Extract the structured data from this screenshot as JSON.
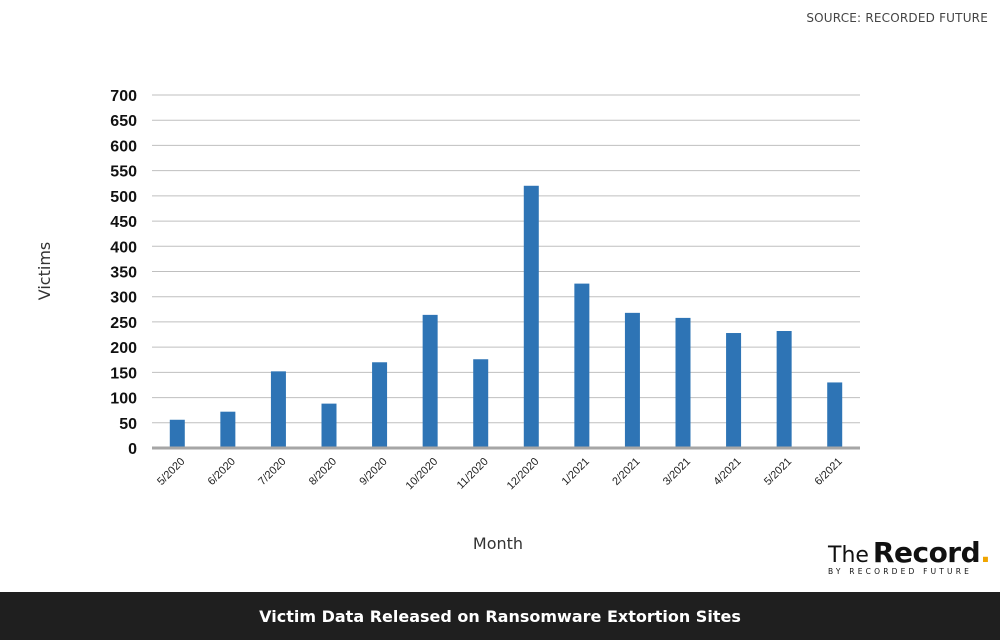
{
  "source": "SOURCE: RECORDED FUTURE",
  "logo": {
    "the": "The",
    "record": "Record",
    "dot": ".",
    "byline": "BY RECORDED FUTURE"
  },
  "footer_title": "Victim Data Released on Ransomware Extortion Sites",
  "colors": {
    "bar": "#2e74b5",
    "grid": "#bfbfbf",
    "axis": "#a6a6a6",
    "accent": "#f0a500",
    "footer_bg": "#1f1f1f"
  },
  "chart_data": {
    "type": "bar",
    "xlabel": "Month",
    "ylabel": "Victims",
    "categories": [
      "5/2020",
      "6/2020",
      "7/2020",
      "8/2020",
      "9/2020",
      "10/2020",
      "11/2020",
      "12/2020",
      "1/2021",
      "2/2021",
      "3/2021",
      "4/2021",
      "5/2021",
      "6/2021"
    ],
    "values": [
      56,
      72,
      152,
      88,
      170,
      264,
      176,
      520,
      326,
      268,
      258,
      228,
      232,
      130
    ],
    "ylim": [
      0,
      700
    ],
    "yticks": [
      0,
      50,
      100,
      150,
      200,
      250,
      300,
      350,
      400,
      450,
      500,
      550,
      600,
      650,
      700
    ],
    "grid": true,
    "legend": "none"
  }
}
